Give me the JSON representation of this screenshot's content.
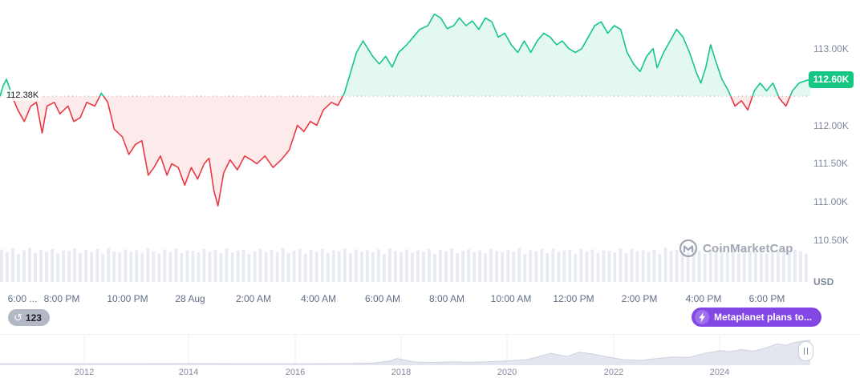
{
  "colors": {
    "green": "#16c784",
    "red": "#ea3943",
    "green_fill": "rgba(22,199,132,0.12)",
    "red_fill": "rgba(234,57,67,0.10)",
    "baseline": "#a6adbd",
    "axis_text": "#808a9d",
    "volume_bar": "#e9ebf2",
    "nav_fill": "#e3e6ee",
    "nav_stroke": "#ccd2de",
    "nav_grid": "#edeff4",
    "badge_green": "#16c784",
    "news_purple": "#8247e5"
  },
  "overlays": {
    "history_count": "123",
    "news_label": "Metaplanet plans to...",
    "watermark": "CoinMarketCap",
    "unit": "USD"
  },
  "chart_data": {
    "type": "line",
    "title": "",
    "ylabel": "USD",
    "ylim": [
      110.45,
      113.55
    ],
    "baseline": {
      "value": 112.38,
      "label": "112.38K"
    },
    "current": {
      "value": 112.6,
      "label": "112.60K"
    },
    "y_ticks": [
      {
        "value": 113.0,
        "label": "113.00K"
      },
      {
        "value": 112.0,
        "label": "112.00K"
      },
      {
        "value": 111.5,
        "label": "111.50K"
      },
      {
        "value": 111.0,
        "label": "111.00K"
      },
      {
        "value": 110.5,
        "label": "110.50K"
      }
    ],
    "x_ticks": [
      {
        "x": 0.028,
        "label": "6:00 ..."
      },
      {
        "x": 0.076,
        "label": "8:00 PM"
      },
      {
        "x": 0.157,
        "label": "10:00 PM"
      },
      {
        "x": 0.235,
        "label": "28 Aug"
      },
      {
        "x": 0.313,
        "label": "2:00 AM"
      },
      {
        "x": 0.393,
        "label": "4:00 AM"
      },
      {
        "x": 0.472,
        "label": "6:00 AM"
      },
      {
        "x": 0.551,
        "label": "8:00 AM"
      },
      {
        "x": 0.631,
        "label": "10:00 AM"
      },
      {
        "x": 0.708,
        "label": "12:00 PM"
      },
      {
        "x": 0.789,
        "label": "2:00 PM"
      },
      {
        "x": 0.868,
        "label": "4:00 PM"
      },
      {
        "x": 0.947,
        "label": "6:00 PM"
      }
    ],
    "price_points": [
      [
        0.0,
        112.38
      ],
      [
        0.004,
        112.52
      ],
      [
        0.008,
        112.6
      ],
      [
        0.012,
        112.48
      ],
      [
        0.016,
        112.35
      ],
      [
        0.022,
        112.2
      ],
      [
        0.03,
        112.05
      ],
      [
        0.038,
        112.25
      ],
      [
        0.045,
        112.3
      ],
      [
        0.052,
        111.9
      ],
      [
        0.058,
        112.25
      ],
      [
        0.067,
        112.3
      ],
      [
        0.074,
        112.15
      ],
      [
        0.084,
        112.25
      ],
      [
        0.091,
        112.05
      ],
      [
        0.099,
        112.1
      ],
      [
        0.107,
        112.3
      ],
      [
        0.117,
        112.25
      ],
      [
        0.125,
        112.42
      ],
      [
        0.133,
        112.3
      ],
      [
        0.141,
        111.95
      ],
      [
        0.151,
        111.85
      ],
      [
        0.159,
        111.62
      ],
      [
        0.167,
        111.75
      ],
      [
        0.175,
        111.8
      ],
      [
        0.183,
        111.35
      ],
      [
        0.19,
        111.45
      ],
      [
        0.198,
        111.6
      ],
      [
        0.206,
        111.35
      ],
      [
        0.212,
        111.5
      ],
      [
        0.22,
        111.45
      ],
      [
        0.228,
        111.22
      ],
      [
        0.236,
        111.45
      ],
      [
        0.244,
        111.3
      ],
      [
        0.252,
        111.5
      ],
      [
        0.258,
        111.57
      ],
      [
        0.264,
        111.15
      ],
      [
        0.269,
        110.95
      ],
      [
        0.276,
        111.38
      ],
      [
        0.284,
        111.55
      ],
      [
        0.293,
        111.42
      ],
      [
        0.302,
        111.6
      ],
      [
        0.31,
        111.55
      ],
      [
        0.317,
        111.5
      ],
      [
        0.327,
        111.6
      ],
      [
        0.337,
        111.45
      ],
      [
        0.347,
        111.55
      ],
      [
        0.357,
        111.68
      ],
      [
        0.367,
        112.0
      ],
      [
        0.375,
        111.92
      ],
      [
        0.383,
        112.05
      ],
      [
        0.391,
        112.0
      ],
      [
        0.399,
        112.2
      ],
      [
        0.409,
        112.3
      ],
      [
        0.417,
        112.26
      ],
      [
        0.425,
        112.42
      ],
      [
        0.433,
        112.7
      ],
      [
        0.44,
        112.95
      ],
      [
        0.448,
        113.1
      ],
      [
        0.454,
        113.0
      ],
      [
        0.46,
        112.9
      ],
      [
        0.468,
        112.8
      ],
      [
        0.476,
        112.9
      ],
      [
        0.484,
        112.76
      ],
      [
        0.492,
        112.95
      ],
      [
        0.502,
        113.05
      ],
      [
        0.51,
        113.15
      ],
      [
        0.518,
        113.25
      ],
      [
        0.528,
        113.3
      ],
      [
        0.536,
        113.45
      ],
      [
        0.544,
        113.4
      ],
      [
        0.552,
        113.26
      ],
      [
        0.56,
        113.3
      ],
      [
        0.567,
        113.4
      ],
      [
        0.575,
        113.3
      ],
      [
        0.583,
        113.36
      ],
      [
        0.591,
        113.25
      ],
      [
        0.599,
        113.4
      ],
      [
        0.607,
        113.35
      ],
      [
        0.615,
        113.15
      ],
      [
        0.623,
        113.2
      ],
      [
        0.631,
        113.05
      ],
      [
        0.639,
        112.95
      ],
      [
        0.647,
        113.1
      ],
      [
        0.655,
        112.95
      ],
      [
        0.663,
        113.1
      ],
      [
        0.671,
        113.2
      ],
      [
        0.679,
        113.15
      ],
      [
        0.687,
        113.05
      ],
      [
        0.694,
        113.1
      ],
      [
        0.702,
        113.0
      ],
      [
        0.71,
        112.95
      ],
      [
        0.718,
        113.0
      ],
      [
        0.726,
        113.15
      ],
      [
        0.734,
        113.3
      ],
      [
        0.742,
        113.35
      ],
      [
        0.75,
        113.2
      ],
      [
        0.758,
        113.3
      ],
      [
        0.766,
        113.25
      ],
      [
        0.774,
        112.95
      ],
      [
        0.782,
        112.8
      ],
      [
        0.79,
        112.7
      ],
      [
        0.798,
        112.9
      ],
      [
        0.806,
        113.0
      ],
      [
        0.811,
        112.75
      ],
      [
        0.819,
        112.95
      ],
      [
        0.827,
        113.1
      ],
      [
        0.835,
        113.25
      ],
      [
        0.843,
        113.15
      ],
      [
        0.851,
        112.95
      ],
      [
        0.859,
        112.7
      ],
      [
        0.865,
        112.55
      ],
      [
        0.871,
        112.75
      ],
      [
        0.877,
        113.05
      ],
      [
        0.883,
        112.85
      ],
      [
        0.891,
        112.6
      ],
      [
        0.899,
        112.45
      ],
      [
        0.907,
        112.25
      ],
      [
        0.915,
        112.32
      ],
      [
        0.923,
        112.2
      ],
      [
        0.931,
        112.45
      ],
      [
        0.938,
        112.55
      ],
      [
        0.946,
        112.45
      ],
      [
        0.954,
        112.55
      ],
      [
        0.962,
        112.35
      ],
      [
        0.97,
        112.25
      ],
      [
        0.978,
        112.45
      ],
      [
        0.986,
        112.55
      ],
      [
        0.994,
        112.58
      ],
      [
        1.0,
        112.6
      ]
    ],
    "volume": [
      0.92,
      0.85,
      0.95,
      0.8,
      0.9,
      0.97,
      0.83,
      0.9,
      0.86,
      0.94,
      0.81,
      0.9,
      0.88,
      0.95,
      0.82,
      0.9,
      0.85,
      0.93,
      0.8,
      0.96,
      0.87,
      0.84,
      0.92,
      0.86,
      0.9,
      0.83,
      0.94,
      0.87,
      0.8,
      0.92,
      0.85,
      0.95,
      0.82,
      0.9,
      0.88,
      0.84,
      0.93,
      0.86,
      0.9,
      0.81,
      0.95,
      0.84,
      0.89,
      0.92,
      0.8,
      0.87,
      0.94,
      0.85,
      0.91,
      0.84,
      0.96,
      0.82,
      0.89,
      0.93,
      0.8,
      0.91,
      0.85,
      0.94,
      0.83,
      0.9,
      0.87,
      0.95,
      0.81,
      0.92,
      0.86,
      0.9,
      0.84,
      0.93,
      0.8,
      0.95,
      0.88,
      0.85,
      0.92,
      0.83,
      0.9,
      0.86,
      0.94,
      0.8,
      0.91,
      0.87,
      0.95,
      0.82,
      0.89,
      0.93,
      0.85,
      0.9,
      0.81,
      0.94,
      0.88,
      0.84,
      0.92,
      0.86,
      0.96,
      0.8,
      0.9,
      0.87,
      0.93,
      0.82,
      0.95,
      0.85,
      0.89,
      0.91,
      0.8,
      0.94,
      0.86,
      0.92,
      0.83,
      0.9,
      0.88,
      0.84,
      0.95,
      0.81,
      0.93,
      0.87,
      0.9,
      0.85,
      0.92,
      0.8,
      0.96,
      0.88,
      0.91,
      0.86,
      0.83,
      0.94,
      0.89,
      0.8,
      0.92,
      0.87,
      0.95,
      0.84,
      0.9,
      0.82,
      0.93,
      0.88,
      0.85,
      0.96,
      0.81,
      0.9,
      0.86,
      0.94,
      0.83,
      0.91,
      0.87,
      0.8
    ],
    "navigator": {
      "years": [
        {
          "x": 0.104,
          "label": "2012"
        },
        {
          "x": 0.233,
          "label": "2014"
        },
        {
          "x": 0.364,
          "label": "2016"
        },
        {
          "x": 0.495,
          "label": "2018"
        },
        {
          "x": 0.626,
          "label": "2020"
        },
        {
          "x": 0.757,
          "label": "2022"
        },
        {
          "x": 0.888,
          "label": "2024"
        }
      ],
      "points": [
        [
          0,
          0.02
        ],
        [
          0.08,
          0.02
        ],
        [
          0.16,
          0.02
        ],
        [
          0.24,
          0.03
        ],
        [
          0.3,
          0.025
        ],
        [
          0.36,
          0.02
        ],
        [
          0.42,
          0.03
        ],
        [
          0.46,
          0.05
        ],
        [
          0.48,
          0.12
        ],
        [
          0.49,
          0.22
        ],
        [
          0.5,
          0.16
        ],
        [
          0.51,
          0.1
        ],
        [
          0.53,
          0.07
        ],
        [
          0.56,
          0.1
        ],
        [
          0.58,
          0.08
        ],
        [
          0.62,
          0.12
        ],
        [
          0.65,
          0.18
        ],
        [
          0.68,
          0.42
        ],
        [
          0.69,
          0.36
        ],
        [
          0.7,
          0.3
        ],
        [
          0.715,
          0.46
        ],
        [
          0.73,
          0.4
        ],
        [
          0.75,
          0.28
        ],
        [
          0.77,
          0.18
        ],
        [
          0.79,
          0.15
        ],
        [
          0.81,
          0.22
        ],
        [
          0.83,
          0.28
        ],
        [
          0.85,
          0.26
        ],
        [
          0.87,
          0.42
        ],
        [
          0.89,
          0.52
        ],
        [
          0.9,
          0.48
        ],
        [
          0.915,
          0.56
        ],
        [
          0.93,
          0.5
        ],
        [
          0.945,
          0.62
        ],
        [
          0.96,
          0.78
        ],
        [
          0.97,
          0.72
        ],
        [
          0.98,
          0.82
        ],
        [
          0.99,
          0.88
        ],
        [
          1.0,
          0.92
        ]
      ]
    }
  }
}
